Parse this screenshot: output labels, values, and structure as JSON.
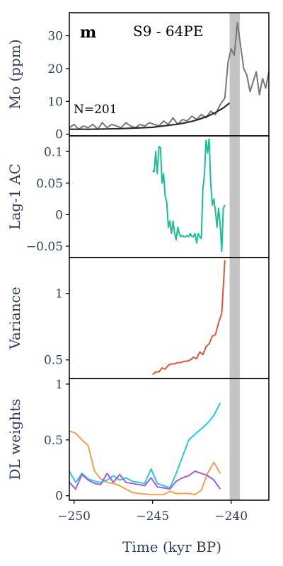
{
  "panel_letter": "m",
  "title": "S9 - 64PE",
  "annotation": "N=201",
  "xlabel": "Time (kyr BP)",
  "colors": {
    "mo_raw": "#777777",
    "mo_fit": "#2b2b2b",
    "shade": "#c4c4c4",
    "ac": "#1bbf95",
    "variance": "#e4553a",
    "dl_orange": "#f6a04d",
    "dl_cyan": "#22cde0",
    "dl_purple": "#a25be2"
  },
  "chart_data": [
    {
      "type": "line",
      "panel": "Mo",
      "ylabel": "Mo (ppm)",
      "xlim": [
        -250.3,
        -237.6
      ],
      "ylim": [
        -0.5,
        37
      ],
      "yticks": [
        0,
        10,
        20,
        30
      ],
      "ytick_labels": [
        "0",
        "10",
        "20",
        "30"
      ],
      "shaded_x": [
        -240.1,
        -239.45
      ],
      "series": [
        {
          "role": "raw",
          "x": [
            -250.3,
            -250,
            -249.7,
            -249.4,
            -249.1,
            -248.8,
            -248.5,
            -248.2,
            -247.9,
            -247.6,
            -247.3,
            -247,
            -246.7,
            -246.4,
            -246.1,
            -245.8,
            -245.5,
            -245.2,
            -244.9,
            -244.6,
            -244.3,
            -244,
            -243.7,
            -243.4,
            -243.1,
            -242.8,
            -242.5,
            -242.2,
            -241.9,
            -241.6,
            -241.3,
            -241,
            -240.7,
            -240.4,
            -240.2,
            -240,
            -239.8,
            -239.6,
            -239.4,
            -239.2,
            -239,
            -238.8,
            -238.6,
            -238.4,
            -238.2,
            -238,
            -237.8,
            -237.6
          ],
          "y": [
            2,
            3,
            1.5,
            2.5,
            2,
            3,
            1.5,
            3.5,
            2,
            3,
            2.5,
            2,
            3.5,
            2.5,
            2,
            3,
            2.5,
            3.5,
            3,
            2.5,
            4,
            3,
            5,
            3,
            4.5,
            4,
            5.5,
            4.5,
            6,
            5,
            7,
            6,
            9,
            11,
            22,
            26,
            24,
            34,
            27,
            20,
            18,
            13,
            16,
            19,
            12,
            17,
            14,
            19
          ]
        },
        {
          "role": "fit",
          "x": [
            -250.3,
            -249,
            -248,
            -247,
            -246,
            -245,
            -244.5,
            -244,
            -243.5,
            -243,
            -242.5,
            -242,
            -241.5,
            -241,
            -240.5,
            -240.1
          ],
          "y": [
            1.5,
            1.5,
            1.6,
            1.7,
            1.9,
            2.1,
            2.4,
            2.7,
            3.0,
            3.4,
            3.9,
            4.6,
            5.5,
            6.6,
            8.0,
            9.5
          ]
        }
      ]
    },
    {
      "type": "line",
      "panel": "Lag-1 AC",
      "ylabel": "Lag-1 AC",
      "xlim": [
        -250.3,
        -237.6
      ],
      "ylim": [
        -0.068,
        0.125
      ],
      "yticks": [
        -0.05,
        0,
        0.05,
        0.1
      ],
      "ytick_labels": [
        "−0.05",
        "0",
        "0.05",
        "0.1"
      ],
      "shaded_x": [
        -240.1,
        -239.45
      ],
      "series": [
        {
          "x": [
            -245.0,
            -244.9,
            -244.8,
            -244.7,
            -244.6,
            -244.5,
            -244.4,
            -244.3,
            -244.2,
            -244.1,
            -244.0,
            -243.9,
            -243.8,
            -243.7,
            -243.6,
            -243.5,
            -243.4,
            -243.3,
            -243.2,
            -243.1,
            -243.0,
            -242.9,
            -242.8,
            -242.7,
            -242.6,
            -242.5,
            -242.4,
            -242.3,
            -242.2,
            -242.1,
            -242.0,
            -241.9,
            -241.8,
            -241.7,
            -241.6,
            -241.5,
            -241.4,
            -241.3,
            -241.2,
            -241.1,
            -241.0,
            -240.9,
            -240.8,
            -240.7,
            -240.6,
            -240.5,
            -240.4
          ],
          "y": [
            0.07,
            0.068,
            0.1,
            0.065,
            0.108,
            0.106,
            0.05,
            0.065,
            0.03,
            0.02,
            -0.02,
            -0.01,
            -0.03,
            -0.01,
            -0.03,
            -0.04,
            -0.02,
            -0.03,
            -0.035,
            -0.033,
            -0.035,
            -0.035,
            -0.033,
            -0.035,
            -0.03,
            -0.035,
            -0.035,
            -0.03,
            -0.045,
            -0.03,
            -0.035,
            -0.038,
            0.04,
            0.065,
            0.118,
            0.098,
            0.12,
            0.05,
            0.015,
            0.025,
            0.005,
            -0.02,
            0.01,
            -0.015,
            -0.058,
            0.01,
            0.015
          ]
        }
      ]
    },
    {
      "type": "line",
      "panel": "Variance",
      "ylabel": "Variance",
      "xlim": [
        -250.3,
        -237.6
      ],
      "ylim": [
        0.36,
        1.27
      ],
      "yticks": [
        0.5,
        1
      ],
      "ytick_labels": [
        "0.5",
        "1"
      ],
      "shaded_x": [
        -240.1,
        -239.45
      ],
      "series": [
        {
          "x": [
            -245.0,
            -244.8,
            -244.6,
            -244.4,
            -244.2,
            -244.0,
            -243.8,
            -243.6,
            -243.4,
            -243.2,
            -243.0,
            -242.8,
            -242.6,
            -242.4,
            -242.2,
            -242.0,
            -241.8,
            -241.6,
            -241.4,
            -241.2,
            -241.0,
            -240.8,
            -240.6,
            -240.5,
            -240.4
          ],
          "y": [
            0.39,
            0.41,
            0.41,
            0.44,
            0.43,
            0.46,
            0.47,
            0.47,
            0.48,
            0.48,
            0.49,
            0.49,
            0.5,
            0.52,
            0.51,
            0.56,
            0.54,
            0.6,
            0.62,
            0.68,
            0.69,
            0.78,
            0.85,
            1.05,
            1.25
          ]
        }
      ]
    },
    {
      "type": "line",
      "panel": "DL weights",
      "ylabel": "DL weights",
      "xlim": [
        -250.3,
        -237.6
      ],
      "ylim": [
        -0.04,
        1.05
      ],
      "yticks": [
        0,
        0.5,
        1
      ],
      "ytick_labels": [
        "0",
        "0.5",
        "1"
      ],
      "xticks": [
        -250,
        -245,
        -240
      ],
      "xtick_labels": [
        "−250",
        "−245",
        "−240"
      ],
      "shaded_x": [
        -240.1,
        -239.45
      ],
      "series": [
        {
          "color_key": "dl_orange",
          "x": [
            -250.3,
            -249.9,
            -249.5,
            -249.1,
            -248.7,
            -248.3,
            -247.9,
            -247.5,
            -247.1,
            -246.7,
            -246.3,
            -245.9,
            -245.5,
            -245.1,
            -244.7,
            -244.3,
            -243.9,
            -243.5,
            -243.1,
            -242.7,
            -242.3,
            -241.9,
            -241.5,
            -241.1,
            -240.7
          ],
          "y": [
            0.58,
            0.56,
            0.5,
            0.45,
            0.22,
            0.15,
            0.12,
            0.11,
            0.09,
            0.06,
            0.03,
            0.02,
            0.015,
            0.01,
            0.01,
            0.01,
            0.04,
            0.02,
            0.02,
            0.02,
            0.01,
            0.05,
            0.2,
            0.3,
            0.2
          ]
        },
        {
          "color_key": "dl_cyan",
          "x": [
            -250.3,
            -249.9,
            -249.5,
            -249.1,
            -248.7,
            -248.3,
            -247.9,
            -247.5,
            -247.1,
            -246.7,
            -246.3,
            -245.9,
            -245.5,
            -245.1,
            -244.7,
            -244.3,
            -243.9,
            -243.5,
            -243.1,
            -242.7,
            -242.3,
            -241.9,
            -241.5,
            -241.1,
            -240.7
          ],
          "y": [
            0.22,
            0.12,
            0.2,
            0.15,
            0.13,
            0.12,
            0.14,
            0.18,
            0.14,
            0.16,
            0.13,
            0.12,
            0.11,
            0.24,
            0.11,
            0.09,
            0.07,
            0.2,
            0.35,
            0.5,
            0.55,
            0.6,
            0.65,
            0.72,
            0.83
          ]
        },
        {
          "color_key": "dl_purple",
          "x": [
            -250.3,
            -249.9,
            -249.5,
            -249.1,
            -248.7,
            -248.3,
            -247.9,
            -247.5,
            -247.1,
            -246.7,
            -246.3,
            -245.9,
            -245.5,
            -245.1,
            -244.7,
            -244.3,
            -243.9,
            -243.5,
            -243.1,
            -242.7,
            -242.3,
            -241.9,
            -241.5,
            -241.1,
            -240.7
          ],
          "y": [
            0.12,
            0.06,
            0.19,
            0.14,
            0.11,
            0.1,
            0.2,
            0.12,
            0.19,
            0.12,
            0.11,
            0.1,
            0.09,
            0.16,
            0.08,
            0.07,
            0.06,
            0.13,
            0.16,
            0.18,
            0.22,
            0.2,
            0.18,
            0.14,
            0.06
          ]
        }
      ]
    }
  ]
}
